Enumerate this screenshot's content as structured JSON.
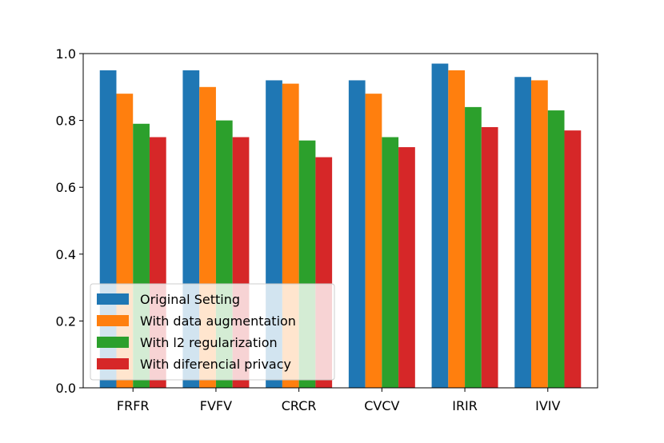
{
  "chart_data": {
    "type": "bar",
    "categories": [
      "FRFR",
      "FVFV",
      "CRCR",
      "CVCV",
      "IRIR",
      "IVIV"
    ],
    "series": [
      {
        "name": "Original Setting",
        "color": "#1f77b4",
        "values": [
          0.95,
          0.95,
          0.92,
          0.92,
          0.97,
          0.93
        ]
      },
      {
        "name": "With data augmentation",
        "color": "#ff7f0e",
        "values": [
          0.88,
          0.9,
          0.91,
          0.88,
          0.95,
          0.92
        ]
      },
      {
        "name": "With l2 regularization",
        "color": "#2ca02c",
        "values": [
          0.79,
          0.8,
          0.74,
          0.75,
          0.84,
          0.83
        ]
      },
      {
        "name": "With diferencial privacy",
        "color": "#d62728",
        "values": [
          0.75,
          0.75,
          0.69,
          0.72,
          0.78,
          0.77
        ]
      }
    ],
    "yticks": [
      "0.0",
      "0.2",
      "0.4",
      "0.6",
      "0.8",
      "1.0"
    ],
    "ylim": [
      0,
      1.0
    ],
    "grid": false,
    "legend_position": "lower-left"
  }
}
